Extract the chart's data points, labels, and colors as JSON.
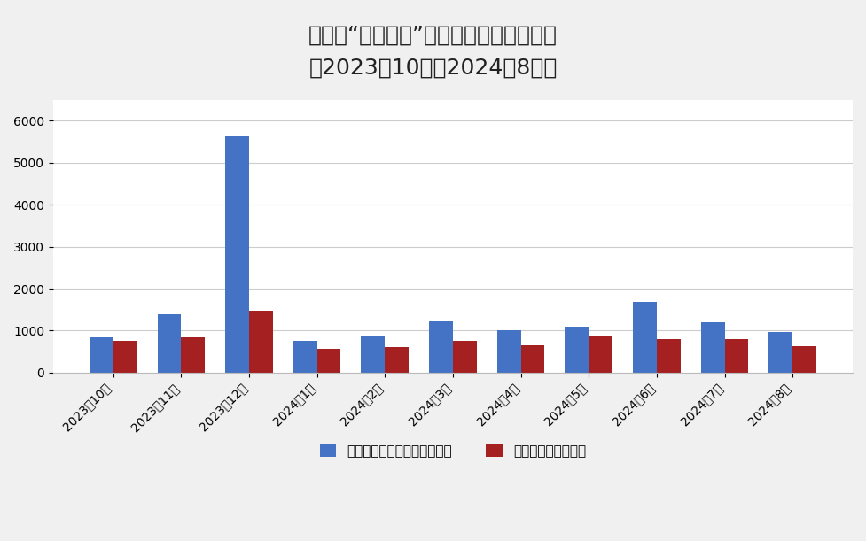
{
  "title_line1": "中企在“一带一路”共建国家承包工程情况",
  "title_line2": "（2023年10月－2024年8月）",
  "categories": [
    "2023年10月",
    "2023年11月",
    "2023年12月",
    "2024年1月",
    "2024年2月",
    "2024年3月",
    "2024年4月",
    "2024年5月",
    "2024年6月",
    "2024年7月",
    "2024年8月"
  ],
  "series1_label": "新签承包工程合同额（亿元）",
  "series2_label": "完成营业额（亿元）",
  "series1_values": [
    850,
    1390,
    5620,
    760,
    870,
    1240,
    1010,
    1100,
    1680,
    1210,
    960
  ],
  "series2_values": [
    760,
    840,
    1480,
    560,
    620,
    750,
    660,
    890,
    790,
    790,
    640
  ],
  "series1_color": "#4472C4",
  "series2_color": "#A52020",
  "ylim": [
    0,
    6500
  ],
  "yticks": [
    0,
    1000,
    2000,
    3000,
    4000,
    5000,
    6000
  ],
  "background_color": "#F0F0F0",
  "plot_background_color": "#FFFFFF",
  "grid_color": "#CCCCCC",
  "title_fontsize": 18,
  "legend_fontsize": 11,
  "tick_fontsize": 10,
  "bar_width": 0.35
}
